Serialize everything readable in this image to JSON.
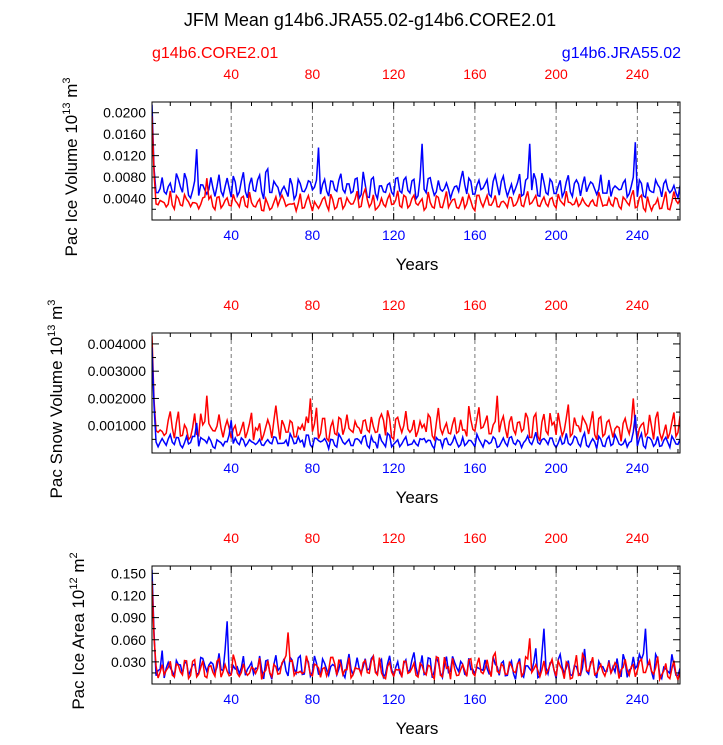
{
  "title": "JFM Mean g14b6.JRA55.02-g14b6.CORE2.01",
  "legend": {
    "left": {
      "text": "g14b6.CORE2.01",
      "color": "#ff0000"
    },
    "right": {
      "text": "g14b6.JRA55.02",
      "color": "#0000ff"
    }
  },
  "colors": {
    "core": "#ff0000",
    "jra": "#0000ff",
    "axis": "#000000",
    "grid": "#777777"
  },
  "chart_data": [
    {
      "type": "line",
      "ylabel_main": "Pac Ice Volume 10",
      "ylabel_exp": "13",
      "ylabel_unit": " m",
      "ylabel_unit_exp": "3",
      "xlabel": "Years",
      "xlim": [
        1,
        261
      ],
      "ylim": [
        0,
        0.022
      ],
      "xticks": [
        40,
        80,
        120,
        160,
        200,
        240
      ],
      "xtick_labels": [
        "40",
        "80",
        "120",
        "160",
        "200",
        "240"
      ],
      "yticks": [
        0.004,
        0.008,
        0.012,
        0.016,
        0.02
      ],
      "ytick_labels": [
        "0.0040",
        "0.0080",
        "0.0120",
        "0.0160",
        "0.0200"
      ],
      "vlines": [
        40,
        80,
        120,
        160,
        200,
        240
      ],
      "spike_start": 0.0215,
      "series": [
        {
          "name": "g14b6.JRA55.02",
          "color": "#0000ff",
          "base": 0.0045,
          "amp": 0.0045,
          "noise": 0.0017,
          "peaks": [
            [
              23,
              0.0132
            ],
            [
              83,
              0.0135
            ],
            [
              134,
              0.0142
            ],
            [
              187,
              0.0142
            ],
            [
              239,
              0.0145
            ]
          ],
          "seed": 11
        },
        {
          "name": "g14b6.CORE2.01",
          "color": "#ff0000",
          "base": 0.0022,
          "amp": 0.0034,
          "noise": 0.0012,
          "peaks": [
            [
              28,
              0.0078
            ]
          ],
          "seed": 23
        }
      ]
    },
    {
      "type": "line",
      "ylabel_main": "Pac Snow Volume 10",
      "ylabel_exp": "13",
      "ylabel_unit": " m",
      "ylabel_unit_exp": "3",
      "xlabel": "Years",
      "xlim": [
        1,
        261
      ],
      "ylim": [
        0,
        0.0044
      ],
      "xticks": [
        40,
        80,
        120,
        160,
        200,
        240
      ],
      "xtick_labels": [
        "40",
        "80",
        "120",
        "160",
        "200",
        "240"
      ],
      "yticks": [
        0.001,
        0.002,
        0.003,
        0.004
      ],
      "ytick_labels": [
        "0.001000",
        "0.002000",
        "0.003000",
        "0.004000"
      ],
      "vlines": [
        40,
        80,
        120,
        160,
        200,
        240
      ],
      "spike_start": 0.0043,
      "series": [
        {
          "name": "g14b6.CORE2.01",
          "color": "#ff0000",
          "base": 0.0006,
          "amp": 0.0011,
          "noise": 0.0004,
          "peaks": [
            [
              28,
              0.0021
            ],
            [
              79,
              0.002
            ],
            [
              171,
              0.0021
            ],
            [
              238,
              0.002
            ]
          ],
          "seed": 5
        },
        {
          "name": "g14b6.JRA55.02",
          "color": "#0000ff",
          "base": 0.00025,
          "amp": 0.0005,
          "noise": 0.0002,
          "peaks": [
            [
              23,
              0.0011
            ],
            [
              40,
              0.0012
            ],
            [
              239,
              0.0014
            ]
          ],
          "seed": 17
        }
      ]
    },
    {
      "type": "line",
      "ylabel_main": "Pac Ice Area 10",
      "ylabel_exp": "12",
      "ylabel_unit": " m",
      "ylabel_unit_exp": "2",
      "xlabel": "Years",
      "xlim": [
        1,
        261
      ],
      "ylim": [
        0,
        0.16
      ],
      "xticks": [
        40,
        80,
        120,
        160,
        200,
        240
      ],
      "xtick_labels": [
        "40",
        "80",
        "120",
        "160",
        "200",
        "240"
      ],
      "yticks": [
        0.03,
        0.06,
        0.09,
        0.12,
        0.15
      ],
      "ytick_labels": [
        "0.030",
        "0.060",
        "0.090",
        "0.120",
        "0.150"
      ],
      "vlines": [
        40,
        80,
        120,
        160,
        200,
        240
      ],
      "spike_start": 0.155,
      "series": [
        {
          "name": "g14b6.JRA55.02",
          "color": "#0000ff",
          "base": 0.012,
          "amp": 0.032,
          "noise": 0.012,
          "peaks": [
            [
              38,
              0.085
            ],
            [
              194,
              0.075
            ],
            [
              244,
              0.075
            ]
          ],
          "seed": 31
        },
        {
          "name": "g14b6.CORE2.01",
          "color": "#ff0000",
          "base": 0.01,
          "amp": 0.03,
          "noise": 0.01,
          "peaks": [
            [
              68,
              0.07
            ],
            [
              187,
              0.062
            ]
          ],
          "seed": 41
        }
      ]
    }
  ]
}
